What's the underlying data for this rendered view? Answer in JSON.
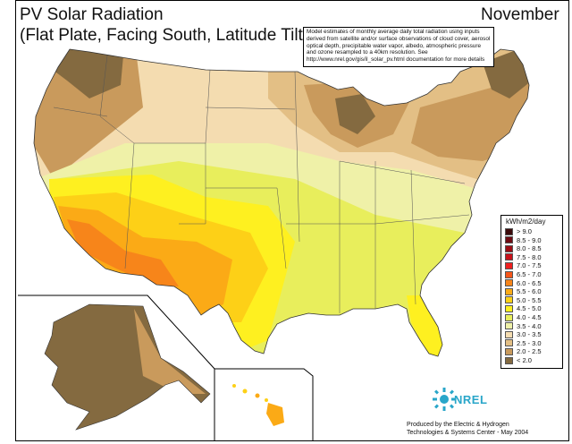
{
  "title_line1": "PV Solar Radiation",
  "title_line2": "(Flat Plate, Facing South, Latitude Tilt)",
  "month": "November",
  "note": "Model estimates of monthly average daily total radiation using inputs derived from satellite and/or surface observations of cloud cover, aerosol optical depth, precipitable water vapor, albedo, atmospheric pressure and ozone resampled to a 40km resolution.  See http://www.nrel.gov/gis/il_solar_pv.html documentation for more details",
  "legend": {
    "title": "kWh/m2/day",
    "entries": [
      {
        "label": "> 9.0",
        "color": "#3b0a0a"
      },
      {
        "label": "8.5 - 9.0",
        "color": "#6e0b12"
      },
      {
        "label": "8.0 - 8.5",
        "color": "#9c0d14"
      },
      {
        "label": "7.5 - 8.0",
        "color": "#c8111a"
      },
      {
        "label": "7.0 - 7.5",
        "color": "#ee2020"
      },
      {
        "label": "6.5 - 7.0",
        "color": "#f5561a"
      },
      {
        "label": "6.0 - 6.5",
        "color": "#f7851a"
      },
      {
        "label": "5.5 - 6.0",
        "color": "#fbaa16"
      },
      {
        "label": "5.0 - 5.5",
        "color": "#fdd017"
      },
      {
        "label": "4.5 - 5.0",
        "color": "#fef020"
      },
      {
        "label": "4.0 - 4.5",
        "color": "#e8ee5c"
      },
      {
        "label": "3.5 - 4.0",
        "color": "#eff1a8"
      },
      {
        "label": "3.0 - 3.5",
        "color": "#f4dcb0"
      },
      {
        "label": "2.5 - 3.0",
        "color": "#e3bf85"
      },
      {
        "label": "2.0 - 2.5",
        "color": "#c99a5c"
      },
      {
        "label": "< 2.0",
        "color": "#846a40"
      }
    ]
  },
  "logo": {
    "text": "NREL",
    "icon": "nrel-sun-logo-icon",
    "color": "#29a6c9"
  },
  "credit_line1": "Produced by the Electric & Hydrogen",
  "credit_line2": "Technologies & Systems Center - May 2004"
}
